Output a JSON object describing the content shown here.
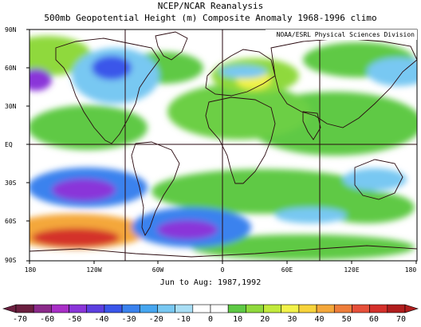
{
  "title_line1": "NCEP/NCAR Reanalysis",
  "title_line2": "500mb Geopotential Height (m) Composite Anomaly 1968-1996 climo",
  "credit": "NOAA/ESRL Physical Sciences Division",
  "period": "Jun to Aug: 1987,1992",
  "lat_labels": [
    "90N",
    "60N",
    "30N",
    "EQ",
    "30S",
    "60S",
    "90S"
  ],
  "lon_labels": [
    "180",
    "120W",
    "60W",
    "0",
    "60E",
    "120E",
    "180"
  ],
  "colorbar": {
    "labels": [
      "-70",
      "-60",
      "-50",
      "-40",
      "-30",
      "-20",
      "-10",
      "0",
      "10",
      "20",
      "30",
      "40",
      "50",
      "60",
      "70"
    ],
    "colors": [
      "#6b1f3f",
      "#8b2a8a",
      "#a92fc7",
      "#8a35d9",
      "#5c3fe0",
      "#3a56ea",
      "#3a82ee",
      "#46a6f0",
      "#78c8f2",
      "#a9def5",
      "#ffffff",
      "#ffffff",
      "#5ec945",
      "#8fd93c",
      "#c2ea3c",
      "#f2f24a",
      "#f7d33b",
      "#f4a73a",
      "#ee7d3a",
      "#e6503a",
      "#d4302b",
      "#b01d1d"
    ]
  },
  "map": {
    "anomaly_field": "500mb geopotential height anomaly",
    "units": "m",
    "lat_range": [
      -90,
      90
    ],
    "lon_range": [
      -180,
      180
    ]
  }
}
